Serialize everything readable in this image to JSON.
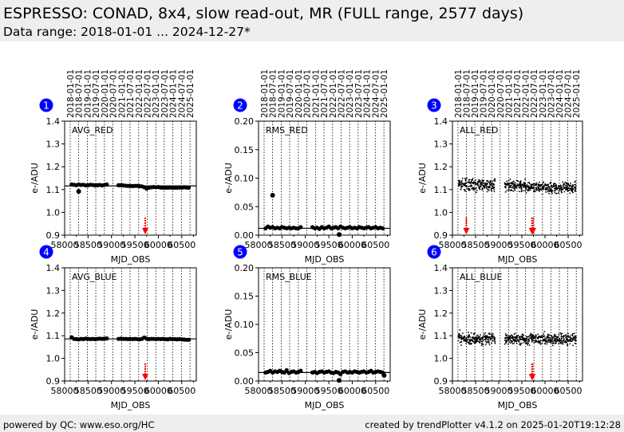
{
  "header": {
    "title": "ESPRESSO: CONAD, 8x4, slow read-out, MR (FULL range, 2577 days)",
    "subtitle": "Data range: 2018-01-01 ... 2024-12-27*"
  },
  "footer": {
    "left": "powered by QC: www.eso.org/HC",
    "right": "created by trendPlotter v4.1.2 on 2025-01-20T19:12:28"
  },
  "colors": {
    "points": "#000000",
    "flag": "#ff0000",
    "badge": "#0000ff",
    "header_bg": "#eeeeee"
  },
  "chart_data": {
    "type": "scatter",
    "xlabel": "MJD_OBS",
    "ylabel": "e-/ADU",
    "xlim": [
      58000,
      60810
    ],
    "x_ticks": [
      58000,
      58500,
      59000,
      59500,
      60000,
      60500
    ],
    "date_lines": [
      {
        "label": "2018-01-01",
        "mjd": 58119
      },
      {
        "label": "2018-07-01",
        "mjd": 58300
      },
      {
        "label": "2019-01-01",
        "mjd": 58484
      },
      {
        "label": "2019-07-01",
        "mjd": 58665
      },
      {
        "label": "2020-01-01",
        "mjd": 58849
      },
      {
        "label": "2020-07-01",
        "mjd": 59031
      },
      {
        "label": "2021-01-01",
        "mjd": 59215
      },
      {
        "label": "2021-07-01",
        "mjd": 59396
      },
      {
        "label": "2022-01-01",
        "mjd": 59580
      },
      {
        "label": "2022-07-01",
        "mjd": 59761
      },
      {
        "label": "2023-01-01",
        "mjd": 59945
      },
      {
        "label": "2023-07-01",
        "mjd": 60126
      },
      {
        "label": "2024-01-01",
        "mjd": 60310
      },
      {
        "label": "2024-07-01",
        "mjd": 60492
      },
      {
        "label": "2025-01-01",
        "mjd": 60676
      }
    ],
    "x": [
      58150,
      58200,
      58250,
      58300,
      58350,
      58400,
      58450,
      58500,
      58550,
      58600,
      58650,
      58700,
      58750,
      58800,
      58850,
      58900,
      59150,
      59200,
      59250,
      59300,
      59350,
      59400,
      59450,
      59500,
      59550,
      59600,
      59650,
      59700,
      59750,
      59800,
      59850,
      59900,
      59950,
      60000,
      60050,
      60100,
      60150,
      60200,
      60250,
      60300,
      60350,
      60400,
      60450,
      60500,
      60550,
      60600,
      60650
    ],
    "panels": [
      {
        "id": "1",
        "name": "AVG_RED",
        "ylim": [
          0.9,
          1.4
        ],
        "y_ticks": [
          "0.9",
          "1.0",
          "1.1",
          "1.2",
          "1.3",
          "1.4"
        ],
        "ref_line": 1.116,
        "kind": "avg",
        "values": [
          1.122,
          1.121,
          1.119,
          1.122,
          1.12,
          1.121,
          1.118,
          1.119,
          1.121,
          1.12,
          1.118,
          1.119,
          1.12,
          1.118,
          1.12,
          1.122,
          1.119,
          1.119,
          1.118,
          1.117,
          1.116,
          1.116,
          1.115,
          1.116,
          1.116,
          1.115,
          1.114,
          1.11,
          1.104,
          1.108,
          1.11,
          1.111,
          1.11,
          1.111,
          1.109,
          1.108,
          1.108,
          1.108,
          1.109,
          1.108,
          1.108,
          1.108,
          1.109,
          1.108,
          1.11,
          1.109,
          1.108
        ],
        "outliers": [
          [
            58300,
            1.092
          ]
        ],
        "flags": [
          59720
        ]
      },
      {
        "id": "2",
        "name": "RMS_RED",
        "ylim": [
          0,
          0.2
        ],
        "y_ticks": [
          "0.00",
          "0.05",
          "0.10",
          "0.15",
          "0.20"
        ],
        "ref_line": 0.012,
        "kind": "rms",
        "values": [
          0.012,
          0.015,
          0.013,
          0.014,
          0.012,
          0.013,
          0.012,
          0.014,
          0.013,
          0.012,
          0.013,
          0.012,
          0.013,
          0.012,
          0.012,
          0.014,
          0.014,
          0.012,
          0.013,
          0.011,
          0.014,
          0.012,
          0.013,
          0.015,
          0.012,
          0.013,
          0.014,
          0.012,
          0.015,
          0.013,
          0.012,
          0.013,
          0.014,
          0.012,
          0.013,
          0.012,
          0.014,
          0.013,
          0.012,
          0.013,
          0.014,
          0.012,
          0.013,
          0.014,
          0.012,
          0.013,
          0.012
        ],
        "outliers": [
          [
            58300,
            0.07
          ],
          [
            59720,
            0.001
          ]
        ],
        "flags": []
      },
      {
        "id": "3",
        "name": "ALL_RED",
        "ylim": [
          0.9,
          1.4
        ],
        "y_ticks": [
          "0.9",
          "1.0",
          "1.1",
          "1.2",
          "1.3",
          "1.4"
        ],
        "kind": "all",
        "source": 0,
        "spread": 0.03,
        "flags": [
          58300,
          59720,
          59730,
          59740
        ]
      },
      {
        "id": "4",
        "name": "AVG_BLUE",
        "ylim": [
          0.9,
          1.4
        ],
        "y_ticks": [
          "0.9",
          "1.0",
          "1.1",
          "1.2",
          "1.3",
          "1.4"
        ],
        "ref_line": 1.086,
        "kind": "avg",
        "values": [
          1.093,
          1.086,
          1.085,
          1.084,
          1.086,
          1.085,
          1.087,
          1.086,
          1.085,
          1.086,
          1.085,
          1.086,
          1.087,
          1.086,
          1.087,
          1.088,
          1.086,
          1.087,
          1.086,
          1.086,
          1.085,
          1.086,
          1.085,
          1.086,
          1.085,
          1.084,
          1.086,
          1.092,
          1.087,
          1.085,
          1.086,
          1.086,
          1.085,
          1.086,
          1.085,
          1.086,
          1.085,
          1.084,
          1.086,
          1.085,
          1.085,
          1.084,
          1.085,
          1.084,
          1.083,
          1.082,
          1.082
        ],
        "outliers": [],
        "flags": [
          59720
        ]
      },
      {
        "id": "5",
        "name": "RMS_BLUE",
        "ylim": [
          0,
          0.2
        ],
        "y_ticks": [
          "0.00",
          "0.05",
          "0.10",
          "0.15",
          "0.20"
        ],
        "ref_line": 0.015,
        "kind": "rms",
        "values": [
          0.015,
          0.016,
          0.018,
          0.015,
          0.017,
          0.016,
          0.018,
          0.016,
          0.015,
          0.019,
          0.014,
          0.016,
          0.017,
          0.015,
          0.016,
          0.018,
          0.015,
          0.016,
          0.014,
          0.016,
          0.017,
          0.015,
          0.016,
          0.017,
          0.015,
          0.014,
          0.016,
          0.015,
          0.012,
          0.016,
          0.017,
          0.015,
          0.016,
          0.015,
          0.017,
          0.016,
          0.015,
          0.016,
          0.017,
          0.015,
          0.016,
          0.018,
          0.015,
          0.016,
          0.017,
          0.016,
          0.015
        ],
        "outliers": [
          [
            59720,
            0.001
          ],
          [
            60680,
            0.01
          ]
        ],
        "flags": []
      },
      {
        "id": "6",
        "name": "ALL_BLUE",
        "ylim": [
          0.9,
          1.4
        ],
        "y_ticks": [
          "0.9",
          "1.0",
          "1.1",
          "1.2",
          "1.3",
          "1.4"
        ],
        "kind": "all",
        "source": 3,
        "spread": 0.03,
        "flags": [
          59720,
          59730
        ]
      }
    ]
  }
}
